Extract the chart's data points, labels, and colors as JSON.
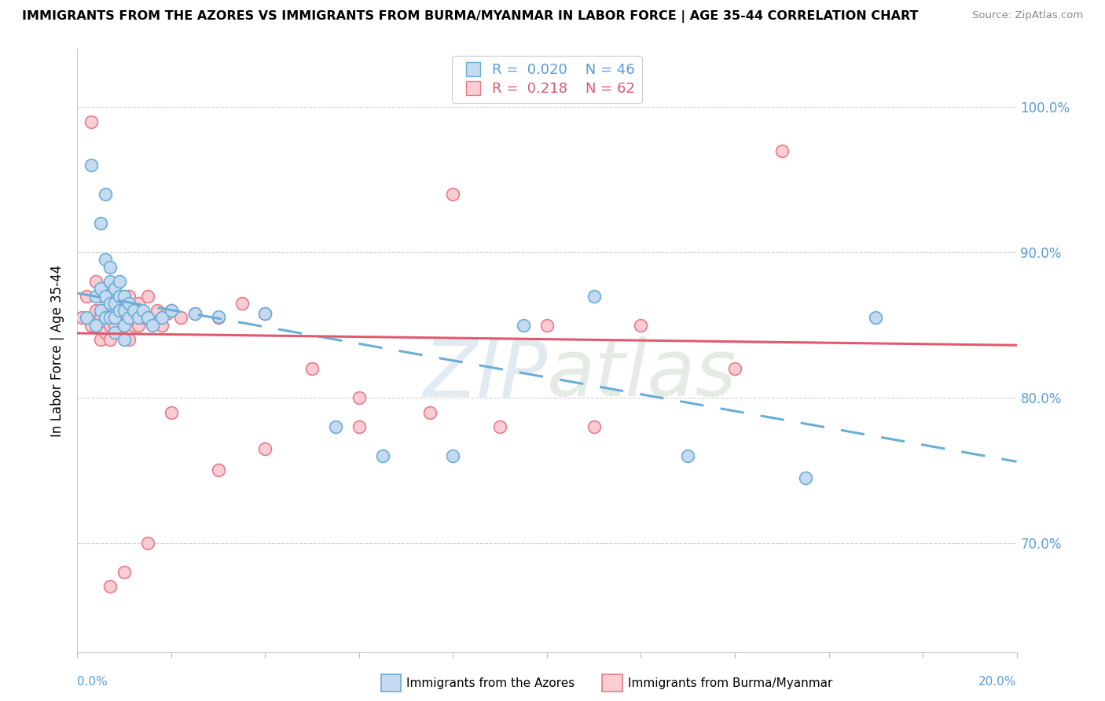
{
  "title": "IMMIGRANTS FROM THE AZORES VS IMMIGRANTS FROM BURMA/MYANMAR IN LABOR FORCE | AGE 35-44 CORRELATION CHART",
  "source": "Source: ZipAtlas.com",
  "ylabel": "In Labor Force | Age 35-44",
  "ytick_vals": [
    0.7,
    0.8,
    0.9,
    1.0
  ],
  "xlim": [
    0.0,
    0.2
  ],
  "ylim": [
    0.625,
    1.04
  ],
  "R_blue": 0.02,
  "N_blue": 46,
  "R_pink": 0.218,
  "N_pink": 62,
  "color_blue_fill": "#c5d9f0",
  "color_blue_edge": "#6aaed6",
  "color_pink_fill": "#f9cdd3",
  "color_pink_edge": "#e87a8a",
  "color_blue_line": "#6aaed6",
  "color_pink_line": "#e05a6e",
  "blue_x": [
    0.002,
    0.003,
    0.004,
    0.004,
    0.005,
    0.005,
    0.005,
    0.006,
    0.006,
    0.006,
    0.006,
    0.007,
    0.007,
    0.007,
    0.007,
    0.008,
    0.008,
    0.008,
    0.008,
    0.009,
    0.009,
    0.009,
    0.01,
    0.01,
    0.01,
    0.01,
    0.011,
    0.011,
    0.012,
    0.013,
    0.014,
    0.015,
    0.016,
    0.018,
    0.02,
    0.025,
    0.03,
    0.04,
    0.055,
    0.065,
    0.08,
    0.095,
    0.11,
    0.13,
    0.155,
    0.17
  ],
  "blue_y": [
    0.855,
    0.96,
    0.87,
    0.85,
    0.875,
    0.92,
    0.86,
    0.94,
    0.895,
    0.87,
    0.855,
    0.89,
    0.88,
    0.865,
    0.855,
    0.875,
    0.865,
    0.855,
    0.845,
    0.88,
    0.87,
    0.86,
    0.87,
    0.86,
    0.85,
    0.84,
    0.865,
    0.855,
    0.86,
    0.855,
    0.86,
    0.855,
    0.85,
    0.855,
    0.86,
    0.858,
    0.856,
    0.858,
    0.78,
    0.76,
    0.76,
    0.85,
    0.87,
    0.76,
    0.745,
    0.855
  ],
  "pink_x": [
    0.001,
    0.002,
    0.003,
    0.003,
    0.004,
    0.004,
    0.005,
    0.005,
    0.005,
    0.006,
    0.006,
    0.006,
    0.007,
    0.007,
    0.007,
    0.007,
    0.008,
    0.008,
    0.008,
    0.009,
    0.009,
    0.009,
    0.01,
    0.01,
    0.01,
    0.011,
    0.011,
    0.011,
    0.012,
    0.012,
    0.013,
    0.013,
    0.014,
    0.015,
    0.015,
    0.016,
    0.017,
    0.018,
    0.019,
    0.02,
    0.022,
    0.025,
    0.03,
    0.035,
    0.04,
    0.05,
    0.06,
    0.075,
    0.09,
    0.11,
    0.12,
    0.14,
    0.15,
    0.08,
    0.1,
    0.06,
    0.04,
    0.03,
    0.02,
    0.015,
    0.01,
    0.007
  ],
  "pink_y": [
    0.855,
    0.87,
    0.99,
    0.85,
    0.88,
    0.86,
    0.87,
    0.855,
    0.84,
    0.875,
    0.86,
    0.845,
    0.875,
    0.865,
    0.85,
    0.84,
    0.87,
    0.86,
    0.85,
    0.865,
    0.855,
    0.845,
    0.87,
    0.86,
    0.85,
    0.87,
    0.855,
    0.84,
    0.86,
    0.85,
    0.865,
    0.85,
    0.855,
    0.87,
    0.855,
    0.855,
    0.86,
    0.85,
    0.858,
    0.86,
    0.855,
    0.858,
    0.855,
    0.865,
    0.858,
    0.82,
    0.8,
    0.79,
    0.78,
    0.78,
    0.85,
    0.82,
    0.97,
    0.94,
    0.85,
    0.78,
    0.765,
    0.75,
    0.79,
    0.7,
    0.68,
    0.67
  ]
}
